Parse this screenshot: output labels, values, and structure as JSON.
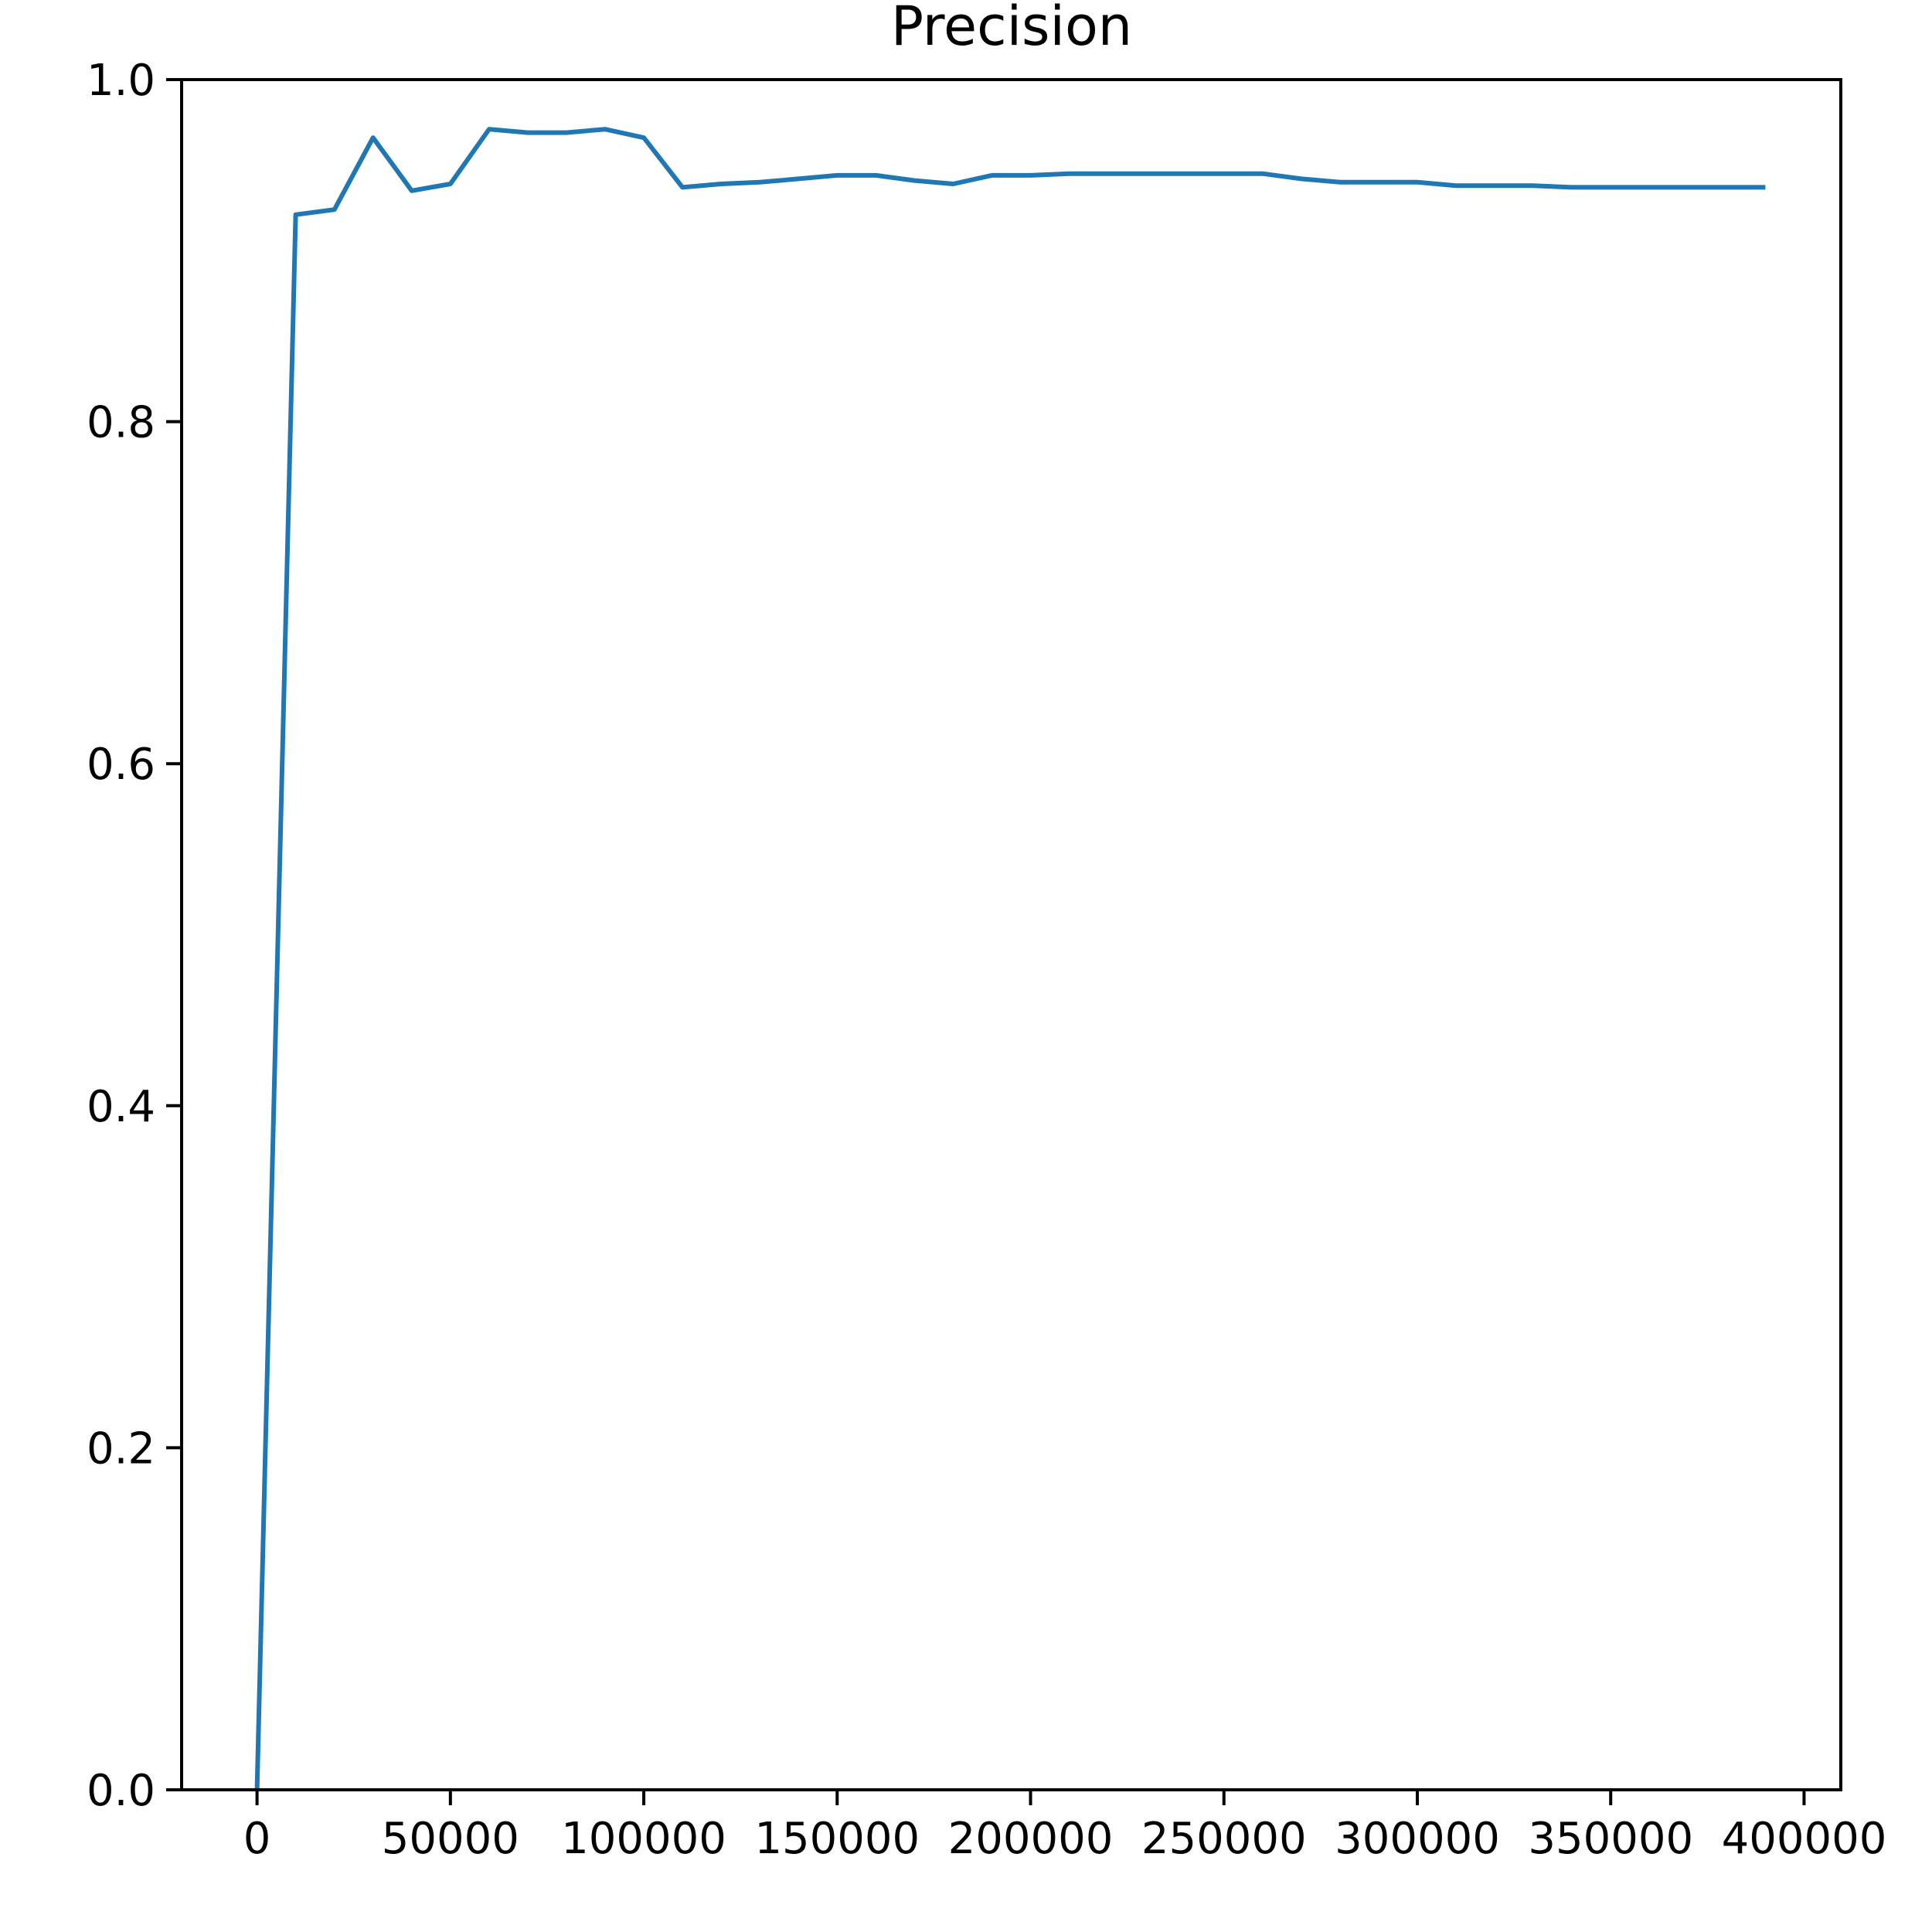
{
  "chart_data": {
    "type": "line",
    "title": "Precision",
    "xlabel": "",
    "ylabel": "",
    "xlim": [
      -19500,
      409500
    ],
    "ylim": [
      0.0,
      1.0
    ],
    "xticks": [
      0,
      50000,
      100000,
      150000,
      200000,
      250000,
      300000,
      350000,
      400000
    ],
    "xtick_labels": [
      "0",
      "50000",
      "100000",
      "150000",
      "200000",
      "250000",
      "300000",
      "350000",
      "400000"
    ],
    "yticks": [
      0.0,
      0.2,
      0.4,
      0.6,
      0.8,
      1.0
    ],
    "ytick_labels": [
      "0.0",
      "0.2",
      "0.4",
      "0.6",
      "0.8",
      "1.0"
    ],
    "grid": false,
    "legend": "none",
    "series": [
      {
        "color": "#1f77b4",
        "x": [
          0,
          10000,
          20000,
          30000,
          40000,
          50000,
          60000,
          70000,
          80000,
          90000,
          100000,
          110000,
          120000,
          130000,
          140000,
          150000,
          160000,
          170000,
          180000,
          190000,
          200000,
          210000,
          220000,
          230000,
          240000,
          250000,
          260000,
          270000,
          280000,
          290000,
          300000,
          310000,
          320000,
          330000,
          340000,
          350000,
          360000,
          370000,
          380000,
          390000
        ],
        "y": [
          0.0,
          0.921,
          0.924,
          0.966,
          0.935,
          0.939,
          0.971,
          0.969,
          0.969,
          0.971,
          0.966,
          0.937,
          0.939,
          0.94,
          0.942,
          0.944,
          0.944,
          0.941,
          0.939,
          0.944,
          0.944,
          0.945,
          0.945,
          0.945,
          0.945,
          0.945,
          0.945,
          0.942,
          0.94,
          0.94,
          0.94,
          0.938,
          0.938,
          0.938,
          0.937,
          0.937,
          0.937,
          0.937,
          0.937,
          0.937
        ]
      }
    ]
  }
}
